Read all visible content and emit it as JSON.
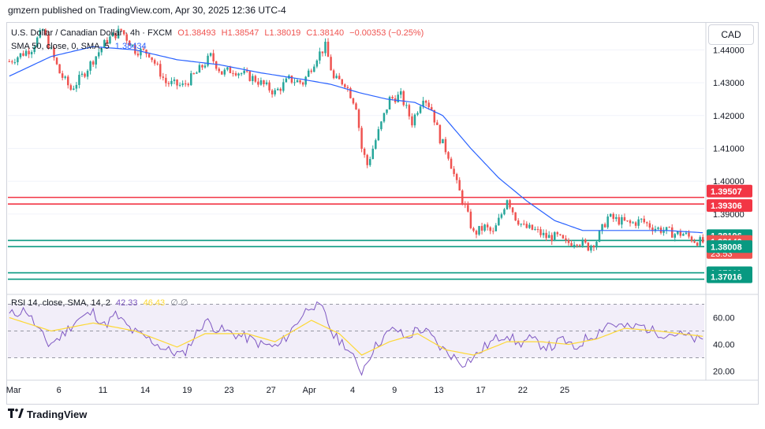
{
  "header": {
    "published": "gmzern published on TradingView.com, Apr 30, 2025 12:36 UTC-4"
  },
  "legend": {
    "symbol": "U.S. Dollar / Canadian Dollar · 4h · FXCM",
    "open": "O1.38493",
    "high": "H1.38547",
    "low": "L1.38019",
    "close": "C1.38140",
    "change": "−0.00353 (−0.25%)",
    "sma_label": "SMA 50, close, 0, SMA, 5",
    "sma_value": "1.38434",
    "rsi_label": "RSI 14, close, SMA, 14, 2",
    "rsi_value": "42.33",
    "rsi_sma_value": "46.43",
    "rsi_extra": "∅ ∅"
  },
  "currency_button": "CAD",
  "footer": {
    "brand": "TradingView"
  },
  "colors": {
    "up": "#26a69a",
    "down": "#ef5350",
    "sma": "#2962ff",
    "rsi": "#7e57c2",
    "rsi_sma": "#fdd835",
    "resistance": "#f23645",
    "support": "#089981"
  },
  "chart_data": {
    "type": "candlestick",
    "symbol": "USD/CAD",
    "timeframe": "4h",
    "ylim": [
      1.366,
      1.448
    ],
    "price_ticks": [
      "1.44000",
      "1.43000",
      "1.42000",
      "1.41000",
      "1.40000",
      "1.39000"
    ],
    "x_tick_labels": [
      "Mar",
      "6",
      "11",
      "14",
      "19",
      "23",
      "27",
      "Apr",
      "4",
      "9",
      "13",
      "17",
      "22",
      "25"
    ],
    "x_tick_index": [
      0,
      18,
      33,
      48,
      63,
      78,
      93,
      106,
      123,
      138,
      153,
      168,
      183,
      198
    ],
    "price_labels": [
      {
        "value": 1.39507,
        "text": "1.39507",
        "kind": "resistance"
      },
      {
        "value": 1.39306,
        "text": "1.39306",
        "kind": "resistance"
      },
      {
        "value": 1.38196,
        "text": "1.38196",
        "kind": "support"
      },
      {
        "value": 1.3814,
        "text": "1.38140",
        "kind": "last"
      },
      {
        "value": 1.38008,
        "text": "1.38008",
        "kind": "support"
      },
      {
        "value": 1.37211,
        "text": "1.37211",
        "kind": "support"
      },
      {
        "value": 1.37016,
        "text": "1.37016",
        "kind": "support"
      }
    ],
    "countdown": "23:53",
    "horizontal_lines": [
      {
        "value": 1.39507,
        "color": "#f23645"
      },
      {
        "value": 1.39306,
        "color": "#f23645"
      },
      {
        "value": 1.38196,
        "color": "#089981"
      },
      {
        "value": 1.38008,
        "color": "#089981"
      },
      {
        "value": 1.37211,
        "color": "#089981"
      },
      {
        "value": 1.37016,
        "color": "#089981"
      }
    ],
    "close_path_keypoints": [
      [
        0,
        1.4365
      ],
      [
        8,
        1.4405
      ],
      [
        12,
        1.446
      ],
      [
        18,
        1.433
      ],
      [
        22,
        1.428
      ],
      [
        26,
        1.432
      ],
      [
        30,
        1.437
      ],
      [
        35,
        1.443
      ],
      [
        40,
        1.446
      ],
      [
        45,
        1.44
      ],
      [
        50,
        1.439
      ],
      [
        56,
        1.43
      ],
      [
        62,
        1.429
      ],
      [
        67,
        1.433
      ],
      [
        72,
        1.438
      ],
      [
        76,
        1.433
      ],
      [
        80,
        1.434
      ],
      [
        88,
        1.431
      ],
      [
        95,
        1.427
      ],
      [
        100,
        1.431
      ],
      [
        105,
        1.43
      ],
      [
        110,
        1.438
      ],
      [
        113,
        1.441
      ],
      [
        116,
        1.431
      ],
      [
        120,
        1.43
      ],
      [
        124,
        1.423
      ],
      [
        126,
        1.41
      ],
      [
        128,
        1.405
      ],
      [
        132,
        1.415
      ],
      [
        136,
        1.425
      ],
      [
        140,
        1.426
      ],
      [
        144,
        1.418
      ],
      [
        148,
        1.426
      ],
      [
        151,
        1.422
      ],
      [
        154,
        1.413
      ],
      [
        157,
        1.408
      ],
      [
        160,
        1.399
      ],
      [
        163,
        1.392
      ],
      [
        166,
        1.384
      ],
      [
        170,
        1.386
      ],
      [
        173,
        1.384
      ],
      [
        176,
        1.39
      ],
      [
        178,
        1.395
      ],
      [
        181,
        1.389
      ],
      [
        184,
        1.386
      ],
      [
        188,
        1.385
      ],
      [
        192,
        1.383
      ],
      [
        196,
        1.383
      ],
      [
        199,
        1.381
      ],
      [
        203,
        1.382
      ],
      [
        207,
        1.38
      ],
      [
        210,
        1.382
      ],
      [
        214,
        1.389
      ],
      [
        218,
        1.388
      ],
      [
        222,
        1.387
      ],
      [
        226,
        1.388
      ],
      [
        230,
        1.386
      ],
      [
        234,
        1.385
      ],
      [
        238,
        1.384
      ],
      [
        241,
        1.384
      ],
      [
        245,
        1.382
      ],
      [
        248,
        1.3814
      ]
    ],
    "sma_keypoints": [
      [
        0,
        1.432
      ],
      [
        15,
        1.438
      ],
      [
        30,
        1.441
      ],
      [
        45,
        1.44
      ],
      [
        60,
        1.437
      ],
      [
        75,
        1.4355
      ],
      [
        90,
        1.433
      ],
      [
        105,
        1.431
      ],
      [
        115,
        1.4295
      ],
      [
        125,
        1.427
      ],
      [
        135,
        1.425
      ],
      [
        145,
        1.424
      ],
      [
        155,
        1.42
      ],
      [
        165,
        1.41
      ],
      [
        175,
        1.401
      ],
      [
        185,
        1.394
      ],
      [
        195,
        1.388
      ],
      [
        205,
        1.385
      ],
      [
        215,
        1.385
      ],
      [
        225,
        1.385
      ],
      [
        235,
        1.385
      ],
      [
        248,
        1.3843
      ]
    ],
    "candle_count": 249,
    "rsi": {
      "ylim": [
        15,
        75
      ],
      "ticks": [
        60,
        40,
        20
      ],
      "tick_labels": [
        "60.00",
        "40.00",
        "20.00"
      ],
      "bands": [
        70,
        50,
        30
      ],
      "keypoints": [
        [
          0,
          62
        ],
        [
          6,
          66
        ],
        [
          10,
          52
        ],
        [
          14,
          40
        ],
        [
          18,
          45
        ],
        [
          24,
          58
        ],
        [
          30,
          64
        ],
        [
          34,
          54
        ],
        [
          38,
          62
        ],
        [
          44,
          50
        ],
        [
          50,
          44
        ],
        [
          56,
          36
        ],
        [
          62,
          32
        ],
        [
          66,
          45
        ],
        [
          70,
          58
        ],
        [
          74,
          52
        ],
        [
          80,
          48
        ],
        [
          86,
          44
        ],
        [
          90,
          40
        ],
        [
          96,
          38
        ],
        [
          100,
          48
        ],
        [
          104,
          60
        ],
        [
          108,
          70
        ],
        [
          112,
          66
        ],
        [
          116,
          46
        ],
        [
          120,
          40
        ],
        [
          124,
          26
        ],
        [
          126,
          20
        ],
        [
          130,
          36
        ],
        [
          134,
          46
        ],
        [
          138,
          52
        ],
        [
          142,
          44
        ],
        [
          146,
          52
        ],
        [
          150,
          48
        ],
        [
          154,
          38
        ],
        [
          158,
          32
        ],
        [
          162,
          26
        ],
        [
          166,
          30
        ],
        [
          170,
          38
        ],
        [
          174,
          44
        ],
        [
          178,
          48
        ],
        [
          182,
          40
        ],
        [
          186,
          44
        ],
        [
          190,
          40
        ],
        [
          194,
          38
        ],
        [
          198,
          44
        ],
        [
          202,
          36
        ],
        [
          206,
          44
        ],
        [
          210,
          48
        ],
        [
          214,
          56
        ],
        [
          218,
          54
        ],
        [
          222,
          52
        ],
        [
          226,
          54
        ],
        [
          230,
          50
        ],
        [
          234,
          48
        ],
        [
          238,
          48
        ],
        [
          242,
          46
        ],
        [
          248,
          42
        ]
      ],
      "sma_keypoints": [
        [
          0,
          60
        ],
        [
          15,
          50
        ],
        [
          30,
          56
        ],
        [
          45,
          50
        ],
        [
          60,
          38
        ],
        [
          70,
          48
        ],
        [
          85,
          48
        ],
        [
          95,
          42
        ],
        [
          108,
          58
        ],
        [
          118,
          48
        ],
        [
          126,
          32
        ],
        [
          136,
          42
        ],
        [
          146,
          48
        ],
        [
          156,
          36
        ],
        [
          166,
          32
        ],
        [
          178,
          42
        ],
        [
          190,
          42
        ],
        [
          200,
          40
        ],
        [
          210,
          44
        ],
        [
          220,
          52
        ],
        [
          232,
          50
        ],
        [
          248,
          46
        ]
      ]
    }
  }
}
